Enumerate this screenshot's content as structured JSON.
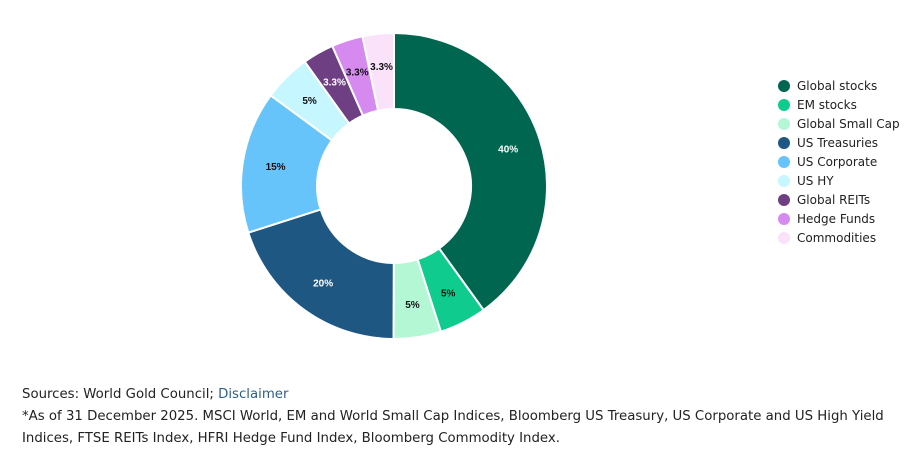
{
  "chart_data": {
    "type": "pie",
    "donut": true,
    "title": "",
    "slices": [
      {
        "label": "Global stocks",
        "value": 40,
        "display": "40%",
        "color": "#00664f",
        "label_color": "#ffffff"
      },
      {
        "label": "EM stocks",
        "value": 5,
        "display": "5%",
        "color": "#0fcc8e",
        "label_color": "#111111"
      },
      {
        "label": "Global Small Cap",
        "value": 5,
        "display": "5%",
        "color": "#b3f7d5",
        "label_color": "#111111"
      },
      {
        "label": "US Treasuries",
        "value": 20,
        "display": "20%",
        "color": "#1f5783",
        "label_color": "#ffffff"
      },
      {
        "label": "US Corporate",
        "value": 15,
        "display": "15%",
        "color": "#66c4fa",
        "label_color": "#111111"
      },
      {
        "label": "US HY",
        "value": 5,
        "display": "5%",
        "color": "#c6f6ff",
        "label_color": "#111111"
      },
      {
        "label": "Global REITs",
        "value": 3.3,
        "display": "3.3%",
        "color": "#6e3f82",
        "label_color": "#ffffff"
      },
      {
        "label": "Hedge Funds",
        "value": 3.3,
        "display": "3.3%",
        "color": "#d68af0",
        "label_color": "#111111"
      },
      {
        "label": "Commodities",
        "value": 3.3,
        "display": "3.3%",
        "color": "#fbe2fb",
        "label_color": "#111111"
      }
    ],
    "legend_position": "right"
  },
  "footer": {
    "sources_label": "Sources: World Gold Council; ",
    "disclaimer_link": "Disclaimer",
    "note": "*As of 31 December 2025. MSCI World, EM and World Small Cap Indices, Bloomberg US Treasury, US Corporate and US High Yield Indices, FTSE REITs Index, HFRI Hedge Fund Index, Bloomberg Commodity Index."
  }
}
